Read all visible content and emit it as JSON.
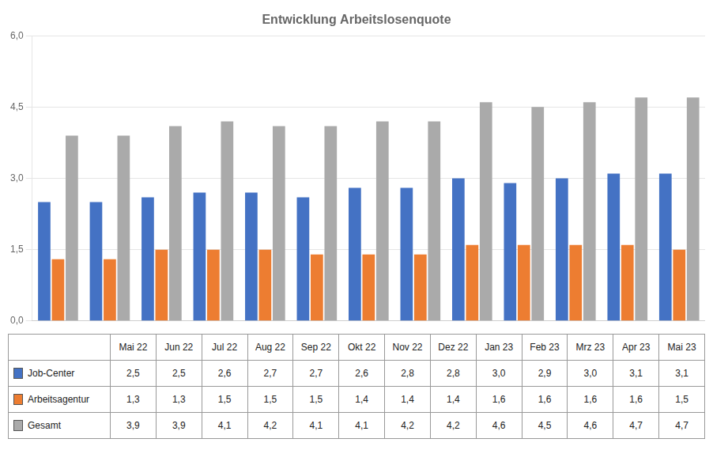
{
  "chart_data": {
    "type": "bar",
    "title": "Entwicklung Arbeitslosenquote",
    "categories": [
      "Mai 22",
      "Jun 22",
      "Jul 22",
      "Aug 22",
      "Sep 22",
      "Okt 22",
      "Nov 22",
      "Dez 22",
      "Jan 23",
      "Feb 23",
      "Mrz 23",
      "Apr 23",
      "Mai 23"
    ],
    "series": [
      {
        "name": "Job-Center",
        "color": "#4472C4",
        "values": [
          2.5,
          2.5,
          2.6,
          2.7,
          2.7,
          2.6,
          2.8,
          2.8,
          3.0,
          2.9,
          3.0,
          3.1,
          3.1
        ],
        "value_labels": [
          "2,5",
          "2,5",
          "2,6",
          "2,7",
          "2,7",
          "2,6",
          "2,8",
          "2,8",
          "3,0",
          "2,9",
          "3,0",
          "3,1",
          "3,1"
        ]
      },
      {
        "name": "Arbeitsagentur",
        "color": "#ED7D31",
        "values": [
          1.3,
          1.3,
          1.5,
          1.5,
          1.5,
          1.4,
          1.4,
          1.4,
          1.6,
          1.6,
          1.6,
          1.6,
          1.5
        ],
        "value_labels": [
          "1,3",
          "1,3",
          "1,5",
          "1,5",
          "1,5",
          "1,4",
          "1,4",
          "1,4",
          "1,6",
          "1,6",
          "1,6",
          "1,6",
          "1,5"
        ]
      },
      {
        "name": "Gesamt",
        "color": "#AAAAAA",
        "values": [
          3.9,
          3.9,
          4.1,
          4.2,
          4.1,
          4.1,
          4.2,
          4.2,
          4.6,
          4.5,
          4.6,
          4.7,
          4.7
        ],
        "value_labels": [
          "3,9",
          "3,9",
          "4,1",
          "4,2",
          "4,1",
          "4,1",
          "4,2",
          "4,2",
          "4,6",
          "4,5",
          "4,6",
          "4,7",
          "4,7"
        ]
      }
    ],
    "ylim": [
      0.0,
      6.0
    ],
    "yticks": [
      {
        "value": 0.0,
        "label": "0,0"
      },
      {
        "value": 1.5,
        "label": "1,5"
      },
      {
        "value": 3.0,
        "label": "3,0"
      },
      {
        "value": 4.5,
        "label": "4,5"
      },
      {
        "value": 6.0,
        "label": "6,0"
      }
    ],
    "grid": true,
    "tick_labels": "y"
  }
}
